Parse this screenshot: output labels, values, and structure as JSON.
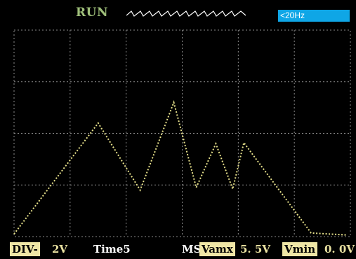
{
  "header": {
    "status": "RUN",
    "frequency": "<20Hz"
  },
  "footer": {
    "div_label": "DIV-",
    "div_value": "2V",
    "time_label": "Time5",
    "time_unit": "MS",
    "vamx_label": "Vamx",
    "vamx_value": "5. 5V",
    "vmin_label": "Vmin",
    "vmin_value": "0. 0V"
  },
  "colors": {
    "grid": "#8a8a8a",
    "trace": "#e6e08a",
    "status": "#9fbf7a",
    "freq_badge": "#0fa6e6",
    "label_bg": "#efe6a6"
  },
  "icons": {
    "trigger": "waveform-icon"
  },
  "chart_data": {
    "type": "line",
    "title": "",
    "xlabel": "",
    "ylabel": "",
    "grid": true,
    "x_divisions": 6,
    "y_divisions": 4,
    "xlim": [
      0,
      6
    ],
    "ylim": [
      0,
      4
    ],
    "series": [
      {
        "x": [
          0,
          1.5,
          2.25,
          2.85,
          3.25,
          3.6,
          3.9,
          4.1,
          5.3,
          5.95
        ],
        "values": [
          0.05,
          2.2,
          0.9,
          2.6,
          0.95,
          1.8,
          0.92,
          1.82,
          0.07,
          0.03
        ]
      }
    ]
  }
}
